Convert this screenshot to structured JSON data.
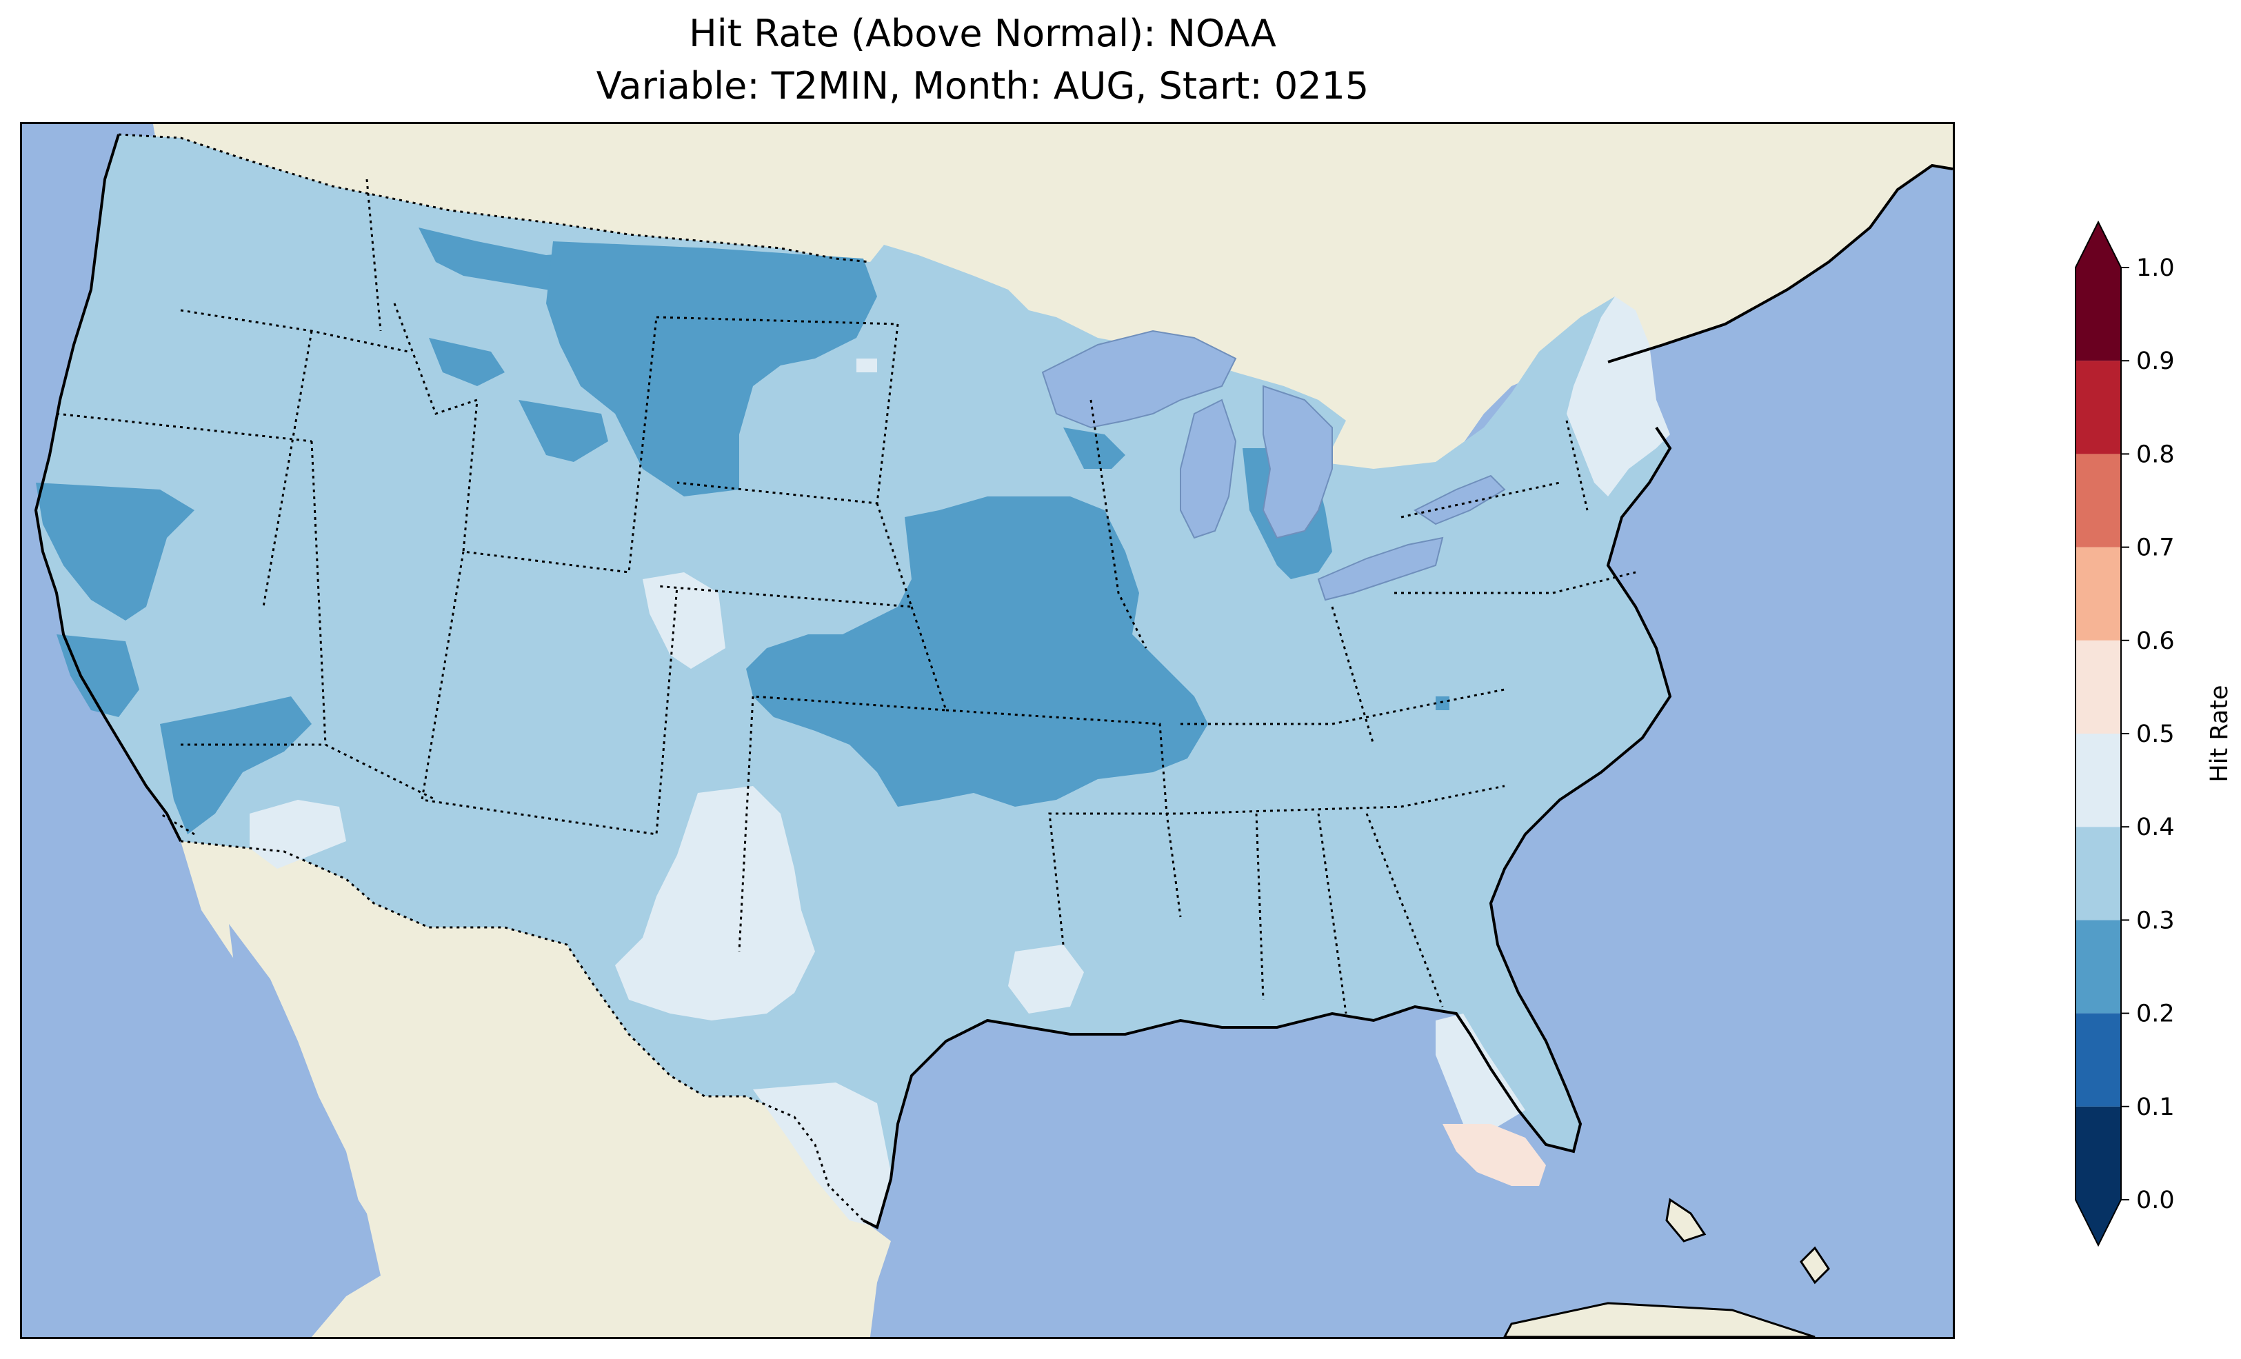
{
  "title": {
    "line1": "Hit Rate (Above Normal): NOAA",
    "line2": "Variable: T2MIN, Month: AUG, Start: 0215"
  },
  "colors": {
    "ocean": "#97b6e1",
    "land": "#efeddb",
    "lakes": "#97b6e1"
  },
  "colorbar": {
    "label": "Hit Rate",
    "ticks": [
      "0.0",
      "0.1",
      "0.2",
      "0.3",
      "0.4",
      "0.5",
      "0.6",
      "0.7",
      "0.8",
      "0.9",
      "1.0"
    ],
    "bins": [
      {
        "from": 0.0,
        "to": 0.1,
        "color": "#063264"
      },
      {
        "from": 0.1,
        "to": 0.2,
        "color": "#2166ac"
      },
      {
        "from": 0.2,
        "to": 0.3,
        "color": "#539dc8"
      },
      {
        "from": 0.3,
        "to": 0.4,
        "color": "#a7cfe4"
      },
      {
        "from": 0.4,
        "to": 0.5,
        "color": "#e0ecf4"
      },
      {
        "from": 0.5,
        "to": 0.6,
        "color": "#f8e4da"
      },
      {
        "from": 0.6,
        "to": 0.7,
        "color": "#f6b495"
      },
      {
        "from": 0.7,
        "to": 0.8,
        "color": "#dd7260"
      },
      {
        "from": 0.8,
        "to": 0.9,
        "color": "#b6202f"
      },
      {
        "from": 0.9,
        "to": 1.0,
        "color": "#6a0020"
      }
    ],
    "extend_low_color": "#063264",
    "extend_high_color": "#6a0020"
  }
}
